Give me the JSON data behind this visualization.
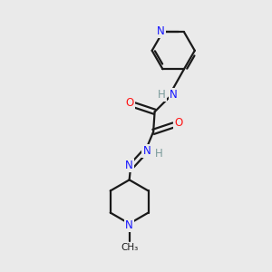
{
  "bg_color": "#eaeaea",
  "bond_color": "#1a1a1a",
  "nitrogen_color": "#1414ff",
  "oxygen_color": "#ff1414",
  "hydrogen_color": "#7a9a9a",
  "line_width": 1.6,
  "figsize": [
    3.0,
    3.0
  ],
  "dpi": 100,
  "xlim": [
    0,
    10
  ],
  "ylim": [
    0,
    10
  ]
}
